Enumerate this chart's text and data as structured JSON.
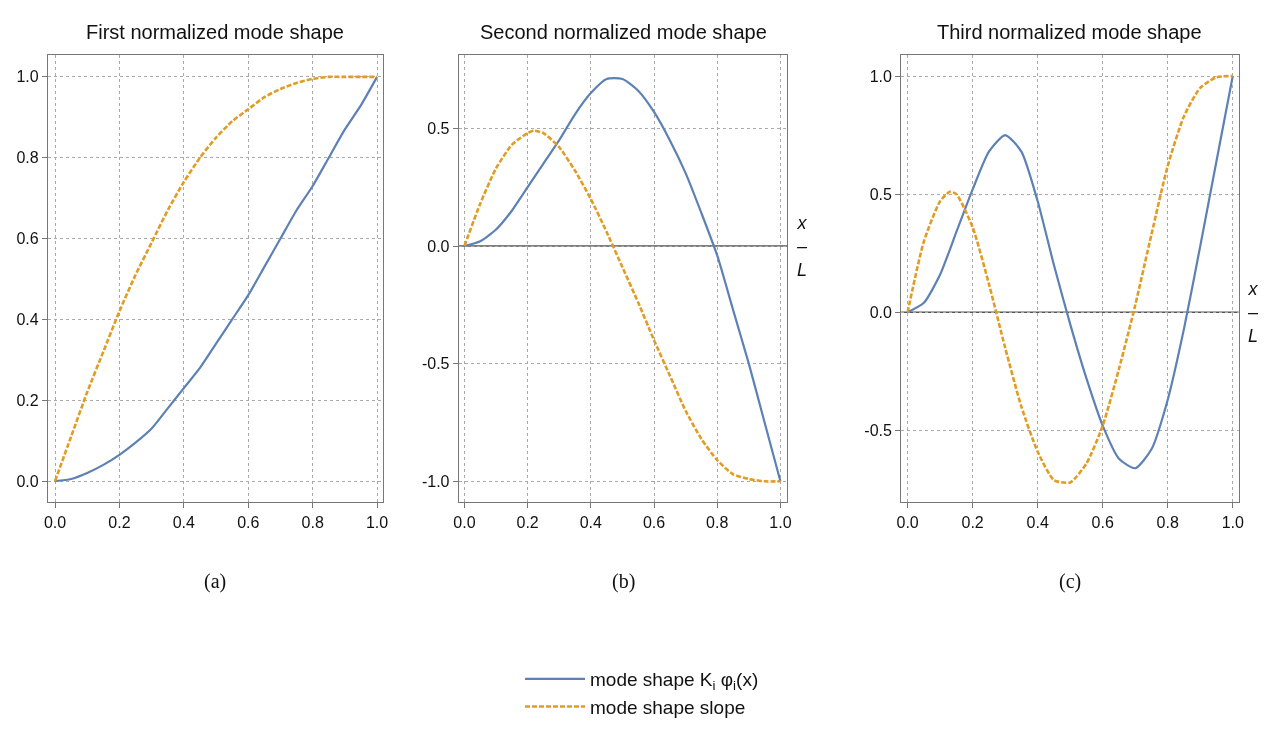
{
  "chart_data": [
    {
      "type": "line",
      "title": "First normalized mode shape",
      "annotations": [
        "(a)"
      ],
      "grid": true,
      "xlim": [
        -0.022,
        1.018
      ],
      "ylim": [
        -0.053,
        1.053
      ],
      "xticks": [
        {
          "value": 0,
          "label": "0.0"
        },
        {
          "value": 0.2,
          "label": "0.2"
        },
        {
          "value": 0.4,
          "label": "0.4"
        },
        {
          "value": 0.6,
          "label": "0.6"
        },
        {
          "value": 0.8,
          "label": "0.8"
        },
        {
          "value": 1,
          "label": "1.0"
        }
      ],
      "yticks": [
        {
          "value": 0,
          "label": "0.0"
        },
        {
          "value": 0.2,
          "label": "0.2"
        },
        {
          "value": 0.4,
          "label": "0.4"
        },
        {
          "value": 0.6,
          "label": "0.6"
        },
        {
          "value": 0.8,
          "label": "0.8"
        },
        {
          "value": 1,
          "label": "1.0"
        }
      ],
      "x": [
        0,
        0.05,
        0.1,
        0.15,
        0.2,
        0.25,
        0.3,
        0.35,
        0.4,
        0.45,
        0.5,
        0.55,
        0.6,
        0.65,
        0.7,
        0.75,
        0.8,
        0.85,
        0.9,
        0.95,
        1
      ],
      "series": [
        {
          "color": "#5e81b5",
          "line_style": "solid",
          "values": [
            0,
            0.005,
            0.02,
            0.04,
            0.065,
            0.095,
            0.13,
            0.18,
            0.23,
            0.28,
            0.34,
            0.4,
            0.46,
            0.53,
            0.6,
            0.67,
            0.73,
            0.8,
            0.87,
            0.93,
            1.0
          ]
        },
        {
          "color": "#e19c24",
          "line_style": "dashed",
          "values": [
            0,
            0.11,
            0.22,
            0.32,
            0.42,
            0.51,
            0.59,
            0.67,
            0.74,
            0.8,
            0.85,
            0.89,
            0.92,
            0.95,
            0.97,
            0.985,
            0.995,
            1,
            1,
            1,
            1
          ]
        }
      ]
    },
    {
      "type": "line",
      "title": "Second normalized mode shape",
      "xlabel": "x\n–\nL",
      "annotations": [
        "(b)"
      ],
      "grid": true,
      "legend": "bottom",
      "xlim": [
        -0.018,
        1.022
      ],
      "ylim": [
        -1.09,
        0.81
      ],
      "xticks": [
        {
          "value": 0,
          "label": "0.0"
        },
        {
          "value": 0.2,
          "label": "0.2"
        },
        {
          "value": 0.4,
          "label": "0.4"
        },
        {
          "value": 0.6,
          "label": "0.6"
        },
        {
          "value": 0.8,
          "label": "0.8"
        },
        {
          "value": 1,
          "label": "1.0"
        }
      ],
      "yticks": [
        {
          "value": -1,
          "label": "-1.0"
        },
        {
          "value": -0.5,
          "label": "-0.5"
        },
        {
          "value": 0,
          "label": "0.0"
        },
        {
          "value": 0.5,
          "label": "0.5"
        }
      ],
      "ref_lines": [
        {
          "axis": "y",
          "value": 0,
          "color": "#555555"
        }
      ],
      "series": [
        {
          "name": "mode shape K$_{i}$ φ$_{i}$(x)",
          "color": "#5e81b5",
          "line_style": "solid",
          "x": [
            0,
            0.05,
            0.1,
            0.15,
            0.2,
            0.25,
            0.3,
            0.35,
            0.4,
            0.45,
            0.5,
            0.55,
            0.6,
            0.65,
            0.7,
            0.75,
            0.8,
            0.85,
            0.9,
            0.95,
            1
          ],
          "values": [
            0,
            0.02,
            0.07,
            0.15,
            0.25,
            0.35,
            0.45,
            0.56,
            0.65,
            0.71,
            0.71,
            0.66,
            0.57,
            0.45,
            0.31,
            0.14,
            -0.04,
            -0.27,
            -0.5,
            -0.75,
            -1.0
          ]
        },
        {
          "name": "mode shape slope",
          "color": "#e19c24",
          "line_style": "dashed",
          "x": [
            0,
            0.05,
            0.1,
            0.15,
            0.2,
            0.22,
            0.25,
            0.3,
            0.35,
            0.4,
            0.45,
            0.5,
            0.55,
            0.6,
            0.65,
            0.7,
            0.75,
            0.8,
            0.85,
            0.9,
            0.95,
            1
          ],
          "values": [
            0,
            0.18,
            0.33,
            0.43,
            0.48,
            0.49,
            0.48,
            0.42,
            0.32,
            0.2,
            0.06,
            -0.09,
            -0.24,
            -0.4,
            -0.55,
            -0.7,
            -0.82,
            -0.91,
            -0.97,
            -0.99,
            -1.0,
            -1.0
          ]
        }
      ]
    },
    {
      "type": "line",
      "title": "Third normalized mode shape",
      "xlabel": "x\n–\nL",
      "annotations": [
        "(c)"
      ],
      "grid": true,
      "xlim": [
        -0.02,
        1.018
      ],
      "ylim": [
        -0.805,
        1.087
      ],
      "xticks": [
        {
          "value": 0,
          "label": "0.0"
        },
        {
          "value": 0.2,
          "label": "0.2"
        },
        {
          "value": 0.4,
          "label": "0.4"
        },
        {
          "value": 0.6,
          "label": "0.6"
        },
        {
          "value": 0.8,
          "label": "0.8"
        },
        {
          "value": 1,
          "label": "1.0"
        }
      ],
      "yticks": [
        {
          "value": -0.5,
          "label": "-0.5"
        },
        {
          "value": 0,
          "label": "0.0"
        },
        {
          "value": 0.5,
          "label": "0.5"
        },
        {
          "value": 1,
          "label": "1.0"
        }
      ],
      "ref_lines": [
        {
          "axis": "y",
          "value": 0,
          "color": "#555555"
        }
      ],
      "series": [
        {
          "color": "#5e81b5",
          "line_style": "solid",
          "x": [
            0,
            0.05,
            0.1,
            0.15,
            0.2,
            0.25,
            0.3,
            0.35,
            0.4,
            0.45,
            0.5,
            0.55,
            0.6,
            0.65,
            0.7,
            0.75,
            0.8,
            0.85,
            0.9,
            0.95,
            1
          ],
          "values": [
            0,
            0.04,
            0.16,
            0.34,
            0.52,
            0.68,
            0.75,
            0.68,
            0.47,
            0.2,
            -0.05,
            -0.28,
            -0.48,
            -0.62,
            -0.66,
            -0.58,
            -0.37,
            -0.07,
            0.28,
            0.64,
            1.0
          ]
        },
        {
          "color": "#e19c24",
          "line_style": "dashed",
          "x": [
            0,
            0.05,
            0.1,
            0.13,
            0.15,
            0.2,
            0.25,
            0.3,
            0.35,
            0.4,
            0.45,
            0.5,
            0.55,
            0.6,
            0.65,
            0.7,
            0.75,
            0.8,
            0.85,
            0.9,
            0.95,
            1
          ],
          "values": [
            0,
            0.3,
            0.47,
            0.51,
            0.5,
            0.36,
            0.12,
            -0.15,
            -0.4,
            -0.59,
            -0.71,
            -0.72,
            -0.64,
            -0.48,
            -0.24,
            0.03,
            0.33,
            0.62,
            0.83,
            0.95,
            0.995,
            1.0
          ]
        }
      ]
    }
  ]
}
